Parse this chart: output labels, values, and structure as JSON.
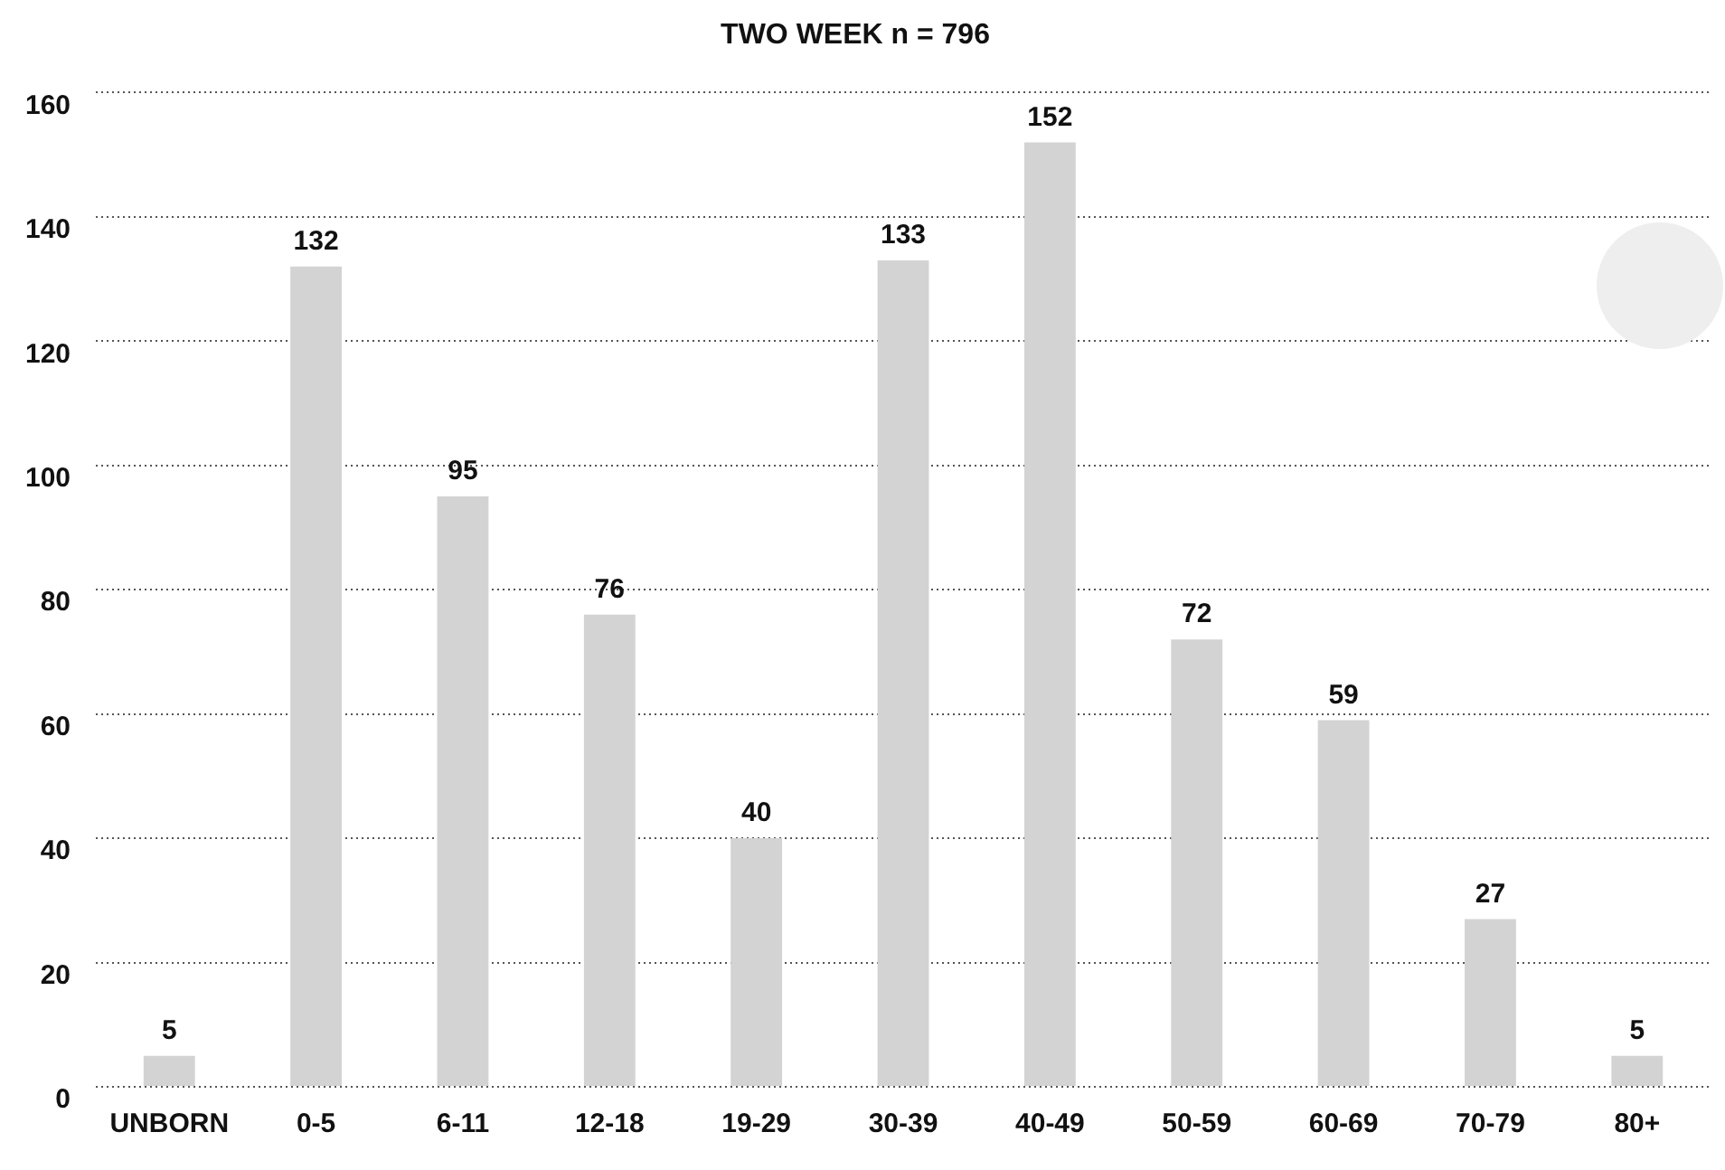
{
  "chart_data": {
    "type": "bar",
    "title": "TWO WEEK n = 796",
    "categories": [
      "UNBORN",
      "0-5",
      "6-11",
      "12-18",
      "19-29",
      "30-39",
      "40-49",
      "50-59",
      "60-69",
      "70-79",
      "80+"
    ],
    "values": [
      5,
      132,
      95,
      76,
      40,
      133,
      152,
      72,
      59,
      27,
      5
    ],
    "color": "#d3d3d3",
    "ylim": [
      0,
      160
    ],
    "yticks": [
      0,
      20,
      40,
      60,
      80,
      100,
      120,
      140,
      160
    ],
    "grid": "y",
    "data_labels": true
  }
}
